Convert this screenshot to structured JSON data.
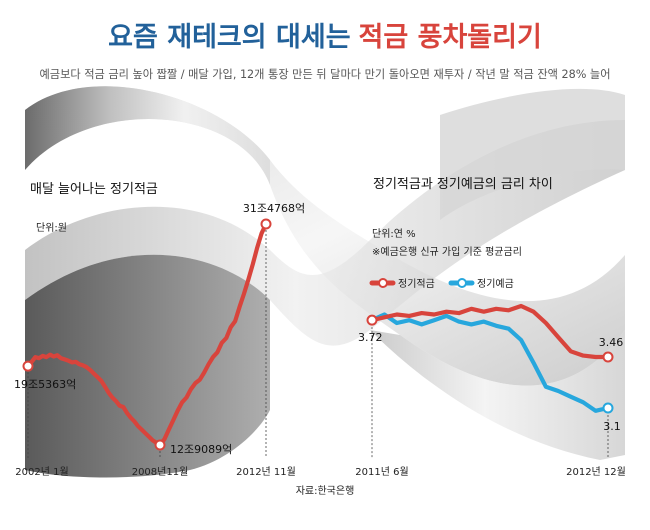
{
  "header": {
    "title_part1": "요즘 재테크의 대세는",
    "title_part2": "적금 풍차돌리기",
    "subtitle": "예금보다 적금 금리 높아 짭짤  /  매달 가입, 12개 통장 만든 뒤 달마다 만기 돌아오면 재투자  /  작년 말 적금 잔액 28% 늘어"
  },
  "source": "자료:한국은행",
  "colors": {
    "accent_red": "#d8443c",
    "accent_blue": "#27a7dd",
    "title_blue": "#22619a"
  },
  "chart_data": [
    {
      "type": "line",
      "title": "매달 늘어나는 정기적금",
      "unit": "단위:원",
      "x_ticks": [
        "2002년 1월",
        "2008년11월",
        "2012년 11월"
      ],
      "annotations": [
        {
          "label": "19조5363억",
          "at": "2002년 1월"
        },
        {
          "label": "12조9089억",
          "at": "2008년11월"
        },
        {
          "label": "31조4768억",
          "at": "2012년 11월"
        }
      ],
      "series": [
        {
          "color": "#d8443c",
          "values": [
            19.54,
            19.9,
            20.3,
            20.2,
            20.4,
            20.3,
            20.5,
            20.35,
            20.45,
            20.2,
            20.1,
            20.0,
            19.85,
            19.9,
            19.7,
            19.6,
            19.45,
            19.2,
            18.9,
            18.6,
            18.3,
            17.8,
            17.3,
            16.9,
            16.6,
            16.2,
            16.1,
            15.6,
            15.2,
            14.9,
            14.5,
            14.2,
            13.9,
            13.6,
            13.3,
            13.1,
            12.91,
            13.4,
            14.2,
            15.0,
            15.8,
            16.5,
            16.9,
            17.6,
            18.1,
            18.4,
            19.0,
            19.7,
            20.3,
            20.7,
            21.5,
            21.9,
            22.8,
            23.3,
            24.5,
            25.6,
            26.8,
            28.1,
            29.5,
            30.7,
            31.48
          ]
        }
      ]
    },
    {
      "type": "line",
      "title": "정기적금과 정기예금의 금리 차이",
      "unit": "단위:연 %",
      "note": "※예금은행 신규 가입 기준 평균금리",
      "x_ticks": [
        "2011년 6월",
        "2012년 12월"
      ],
      "annotations": [
        {
          "label": "3.72",
          "at": "2011년 6월"
        },
        {
          "label": "3.46",
          "at": "2012년 12월",
          "series": "정기적금"
        },
        {
          "label": "3.1",
          "at": "2012년 12월",
          "series": "정기예금"
        }
      ],
      "series": [
        {
          "name": "정기적금",
          "color": "#d8443c",
          "values": [
            3.72,
            3.74,
            3.76,
            3.75,
            3.77,
            3.76,
            3.78,
            3.77,
            3.8,
            3.78,
            3.8,
            3.79,
            3.82,
            3.78,
            3.7,
            3.6,
            3.5,
            3.47,
            3.46,
            3.46
          ]
        },
        {
          "name": "정기예금",
          "color": "#27a7dd",
          "values": [
            3.72,
            3.76,
            3.7,
            3.72,
            3.69,
            3.72,
            3.75,
            3.71,
            3.69,
            3.71,
            3.68,
            3.66,
            3.58,
            3.42,
            3.25,
            3.22,
            3.18,
            3.14,
            3.08,
            3.1
          ]
        }
      ]
    }
  ]
}
